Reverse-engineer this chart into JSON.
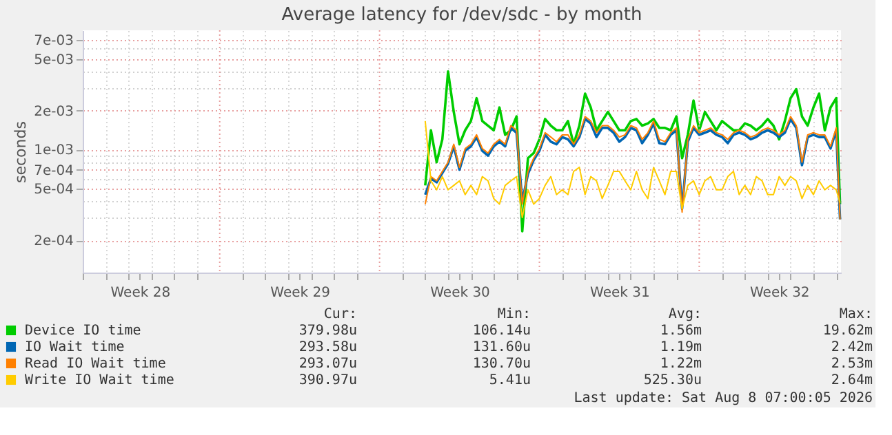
{
  "chart_data": {
    "type": "line",
    "title": "Average latency for /dev/sdc - by month",
    "ylabel": "seconds",
    "log": true,
    "grid": true,
    "legend": "bottom",
    "line_style": "solid",
    "marker": "none",
    "x": [
      "2026-07-22T00:00",
      "2026-07-22T06:00",
      "2026-07-22T12:00",
      "2026-07-22T18:00",
      "2026-07-23T00:00",
      "2026-07-23T06:00",
      "2026-07-23T12:00",
      "2026-07-23T18:00",
      "2026-07-24T00:00",
      "2026-07-24T06:00",
      "2026-07-24T12:00",
      "2026-07-24T18:00",
      "2026-07-25T00:00",
      "2026-07-25T06:00",
      "2026-07-25T12:00",
      "2026-07-25T18:00",
      "2026-07-26T00:00",
      "2026-07-26T06:00",
      "2026-07-26T12:00",
      "2026-07-26T18:00",
      "2026-07-27T00:00",
      "2026-07-27T06:00",
      "2026-07-27T12:00",
      "2026-07-27T18:00",
      "2026-07-28T00:00",
      "2026-07-28T06:00",
      "2026-07-28T12:00",
      "2026-07-28T18:00",
      "2026-07-29T00:00",
      "2026-07-29T06:00",
      "2026-07-29T12:00",
      "2026-07-29T18:00",
      "2026-07-30T00:00",
      "2026-07-30T06:00",
      "2026-07-30T12:00",
      "2026-07-30T18:00",
      "2026-07-31T00:00",
      "2026-07-31T06:00",
      "2026-07-31T12:00",
      "2026-07-31T18:00",
      "2026-08-01T00:00",
      "2026-08-01T06:00",
      "2026-08-01T12:00",
      "2026-08-01T18:00",
      "2026-08-02T00:00",
      "2026-08-02T06:00",
      "2026-08-02T12:00",
      "2026-08-02T18:00",
      "2026-08-03T00:00",
      "2026-08-03T06:00",
      "2026-08-03T12:00",
      "2026-08-03T18:00",
      "2026-08-04T00:00",
      "2026-08-04T06:00",
      "2026-08-04T12:00",
      "2026-08-04T18:00",
      "2026-08-05T00:00",
      "2026-08-05T06:00",
      "2026-08-05T12:00",
      "2026-08-05T18:00",
      "2026-08-06T00:00",
      "2026-08-06T06:00",
      "2026-08-06T12:00",
      "2026-08-06T18:00",
      "2026-08-07T00:00",
      "2026-08-07T06:00",
      "2026-08-07T12:00",
      "2026-08-07T18:00",
      "2026-08-08T00:00",
      "2026-08-08T06:00",
      "2026-08-08T12:00",
      "2026-08-08T18:00",
      "2026-08-09T00:00",
      "2026-08-09T04:00"
    ],
    "series": [
      {
        "name": "Device IO time",
        "color": "#00cc00",
        "values": [
          0.00053,
          0.00141,
          0.0008,
          0.0012,
          0.004,
          0.00195,
          0.0011,
          0.00141,
          0.00166,
          0.00249,
          0.00166,
          0.00153,
          0.00141,
          0.00211,
          0.0013,
          0.00141,
          0.0018,
          0.000235,
          0.00086,
          0.00094,
          0.0012,
          0.00172,
          0.00153,
          0.00141,
          0.00141,
          0.00166,
          0.0011,
          0.00153,
          0.0027,
          0.00211,
          0.00141,
          0.00166,
          0.00195,
          0.00166,
          0.00141,
          0.00141,
          0.00166,
          0.00172,
          0.00153,
          0.00159,
          0.00172,
          0.00147,
          0.00147,
          0.00141,
          0.0018,
          0.00086,
          0.0013,
          0.00239,
          0.00141,
          0.00195,
          0.00166,
          0.00141,
          0.00166,
          0.00153,
          0.00141,
          0.00141,
          0.00159,
          0.00153,
          0.00141,
          0.00153,
          0.00172,
          0.00153,
          0.0012,
          0.00166,
          0.00249,
          0.00292,
          0.0018,
          0.00153,
          0.00211,
          0.0027,
          0.00141,
          0.00211,
          0.00249,
          0.00038
        ]
      },
      {
        "name": "IO Wait time",
        "color": "#0066b3",
        "values": [
          0.00045,
          0.0006,
          0.00056,
          0.00066,
          0.00078,
          0.00106,
          0.0007,
          0.00098,
          0.00106,
          0.00125,
          0.00098,
          0.0009,
          0.00106,
          0.00115,
          0.00106,
          0.00147,
          0.00135,
          0.0004,
          0.00065,
          0.00083,
          0.00098,
          0.0013,
          0.00115,
          0.0011,
          0.00125,
          0.0012,
          0.00106,
          0.00125,
          0.00172,
          0.00159,
          0.00125,
          0.00147,
          0.00147,
          0.00135,
          0.00115,
          0.00125,
          0.00147,
          0.00141,
          0.00112,
          0.0013,
          0.00159,
          0.00112,
          0.0011,
          0.0013,
          0.00141,
          0.00035,
          0.00115,
          0.00147,
          0.0013,
          0.00135,
          0.00141,
          0.0013,
          0.00125,
          0.00112,
          0.0013,
          0.00135,
          0.0013,
          0.0012,
          0.00125,
          0.00135,
          0.00141,
          0.00135,
          0.00125,
          0.00135,
          0.00172,
          0.00147,
          0.00076,
          0.00125,
          0.0013,
          0.00125,
          0.00125,
          0.00102,
          0.00141,
          0.00029
        ]
      },
      {
        "name": "Read IO Wait time",
        "color": "#ff8000",
        "values": [
          0.00038,
          0.00062,
          0.000575,
          0.00068,
          0.0008,
          0.0011,
          0.00073,
          0.00102,
          0.0011,
          0.0013,
          0.00102,
          0.00094,
          0.0011,
          0.0012,
          0.0011,
          0.00153,
          0.00141,
          0.00038,
          0.00068,
          0.00086,
          0.00102,
          0.00135,
          0.00125,
          0.00115,
          0.0013,
          0.0013,
          0.0011,
          0.0013,
          0.0018,
          0.00166,
          0.00135,
          0.00153,
          0.00153,
          0.00141,
          0.00125,
          0.0013,
          0.00153,
          0.00147,
          0.0012,
          0.00135,
          0.00166,
          0.0012,
          0.00115,
          0.00135,
          0.00147,
          0.00033,
          0.0012,
          0.00153,
          0.00135,
          0.00141,
          0.00147,
          0.00135,
          0.0013,
          0.0012,
          0.00135,
          0.00141,
          0.00135,
          0.00125,
          0.0013,
          0.00141,
          0.00147,
          0.00141,
          0.0013,
          0.00141,
          0.0018,
          0.00153,
          0.0008,
          0.0013,
          0.00135,
          0.0013,
          0.0013,
          0.00106,
          0.00147,
          0.00029
        ]
      },
      {
        "name": "Write IO Wait time",
        "color": "#ffcc00",
        "values": [
          0.00166,
          0.000575,
          0.00049,
          0.00062,
          0.00049,
          0.00053,
          0.000575,
          0.00045,
          0.00053,
          0.00045,
          0.00062,
          0.000575,
          0.00042,
          0.00038,
          0.00053,
          0.000575,
          0.00062,
          0.0003,
          0.00049,
          0.00038,
          0.00042,
          0.00053,
          0.00062,
          0.00045,
          0.00049,
          0.00045,
          0.00068,
          0.00073,
          0.00045,
          0.00062,
          0.000575,
          0.00042,
          0.00053,
          0.00068,
          0.00068,
          0.000575,
          0.00049,
          0.00068,
          0.00049,
          0.00042,
          0.00073,
          0.000575,
          0.00045,
          0.00068,
          0.00068,
          0.00035,
          0.00053,
          0.000575,
          0.00045,
          0.000575,
          0.00062,
          0.00049,
          0.00049,
          0.00062,
          0.00068,
          0.00045,
          0.00053,
          0.00045,
          0.00062,
          0.000575,
          0.00045,
          0.00045,
          0.00062,
          0.00053,
          0.00062,
          0.000575,
          0.00042,
          0.00053,
          0.00045,
          0.000575,
          0.00049,
          0.00053,
          0.00049,
          0.00039
        ]
      }
    ],
    "xlim": [
      "2026-07-07T00:00",
      "2026-08-09T05:00"
    ],
    "xticks": [
      {
        "value": "2026-07-07",
        "label": null
      },
      {
        "value": "2026-07-08",
        "label": null
      },
      {
        "value": "2026-07-09",
        "label": null
      },
      {
        "value": "2026-07-09T12:00",
        "label": "Week 28"
      },
      {
        "value": "2026-07-10",
        "label": null
      },
      {
        "value": "2026-07-11",
        "label": null
      },
      {
        "value": "2026-07-12",
        "label": null
      },
      {
        "value": "2026-07-14",
        "label": null
      },
      {
        "value": "2026-07-15",
        "label": null
      },
      {
        "value": "2026-07-16",
        "label": null
      },
      {
        "value": "2026-07-16T12:00",
        "label": "Week 29"
      },
      {
        "value": "2026-07-17",
        "label": null
      },
      {
        "value": "2026-07-18",
        "label": null
      },
      {
        "value": "2026-07-19",
        "label": null
      },
      {
        "value": "2026-07-21",
        "label": null
      },
      {
        "value": "2026-07-22",
        "label": null
      },
      {
        "value": "2026-07-23",
        "label": null
      },
      {
        "value": "2026-07-23T12:00",
        "label": "Week 30"
      },
      {
        "value": "2026-07-24",
        "label": null
      },
      {
        "value": "2026-07-25",
        "label": null
      },
      {
        "value": "2026-07-26",
        "label": null
      },
      {
        "value": "2026-07-28",
        "label": null
      },
      {
        "value": "2026-07-29",
        "label": null
      },
      {
        "value": "2026-07-30",
        "label": null
      },
      {
        "value": "2026-07-30T12:00",
        "label": "Week 31"
      },
      {
        "value": "2026-07-31",
        "label": null
      },
      {
        "value": "2026-08-01",
        "label": null
      },
      {
        "value": "2026-08-02",
        "label": null
      },
      {
        "value": "2026-08-04",
        "label": null
      },
      {
        "value": "2026-08-05",
        "label": null
      },
      {
        "value": "2026-08-06",
        "label": null
      },
      {
        "value": "2026-08-06T12:00",
        "label": "Week 32"
      },
      {
        "value": "2026-08-07",
        "label": null
      },
      {
        "value": "2026-08-08",
        "label": null
      },
      {
        "value": "2026-08-09",
        "label": null
      }
    ],
    "ylim": [
      0.000113,
      0.0083
    ],
    "yticks": [
      {
        "value": 0.0002,
        "label": "2e-04"
      },
      {
        "value": 0.0003,
        "label": null
      },
      {
        "value": 0.0004,
        "label": null
      },
      {
        "value": 0.0005,
        "label": "5e-04"
      },
      {
        "value": 0.0006,
        "label": null
      },
      {
        "value": 0.0007,
        "label": "7e-04"
      },
      {
        "value": 0.0008,
        "label": null
      },
      {
        "value": 0.0009,
        "label": null
      },
      {
        "value": 0.001,
        "label": "1e-03"
      },
      {
        "value": 0.002,
        "label": "2e-03"
      },
      {
        "value": 0.003,
        "label": null
      },
      {
        "value": 0.004,
        "label": null
      },
      {
        "value": 0.005,
        "label": "5e-03"
      },
      {
        "value": 0.006,
        "label": null
      },
      {
        "value": 0.007,
        "label": "7e-03"
      }
    ],
    "ref_lines": [
      {
        "axis": "x",
        "value": "2026-07-13",
        "label": null,
        "color": "#e8a0a0",
        "line_style": "dotted"
      },
      {
        "axis": "x",
        "value": "2026-07-20",
        "label": null,
        "color": "#e8a0a0",
        "line_style": "dotted"
      },
      {
        "axis": "x",
        "value": "2026-07-27",
        "label": null,
        "color": "#e8a0a0",
        "line_style": "dotted"
      },
      {
        "axis": "x",
        "value": "2026-08-03",
        "label": null,
        "color": "#e8a0a0",
        "line_style": "dotted"
      }
    ],
    "annotations": [
      "Cur:",
      "Min:",
      "Avg:",
      "Max:",
      "379.98u",
      "106.14u",
      "1.56m",
      "19.62m",
      "293.58u",
      "131.60u",
      "1.19m",
      "2.42m",
      "293.07u",
      "130.70u",
      "1.22m",
      "2.53m",
      "390.97u",
      "5.41u",
      "525.30u",
      "2.64m",
      "Last update: Sat Aug  8 07:00:05 2026"
    ]
  }
}
